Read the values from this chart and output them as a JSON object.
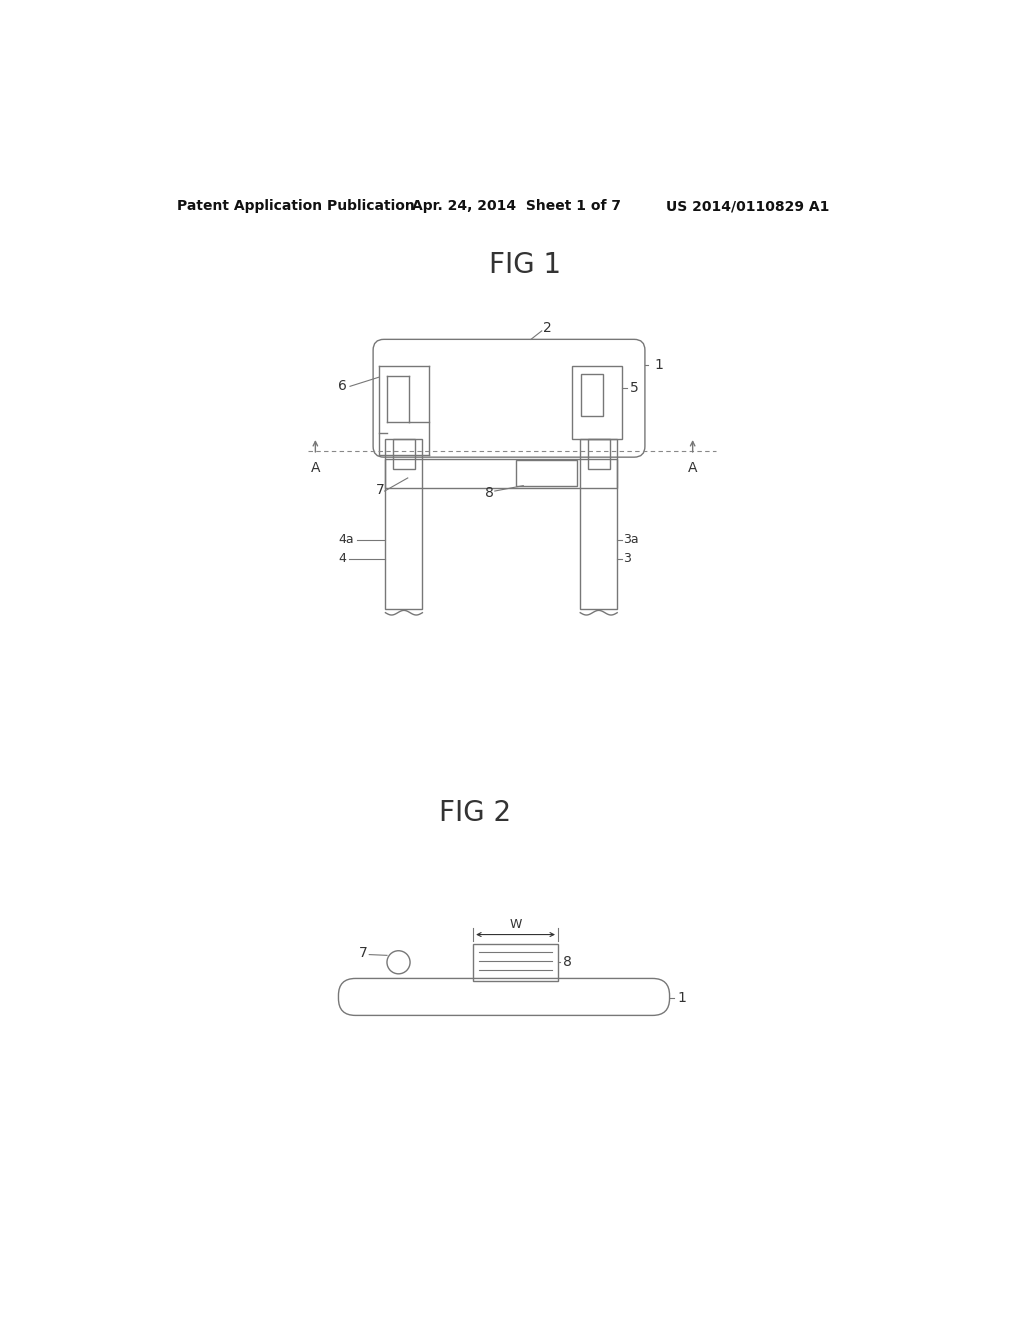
{
  "header_left": "Patent Application Publication",
  "header_mid": "Apr. 24, 2014  Sheet 1 of 7",
  "header_right": "US 2014/0110829 A1",
  "fig1_title": "FIG 1",
  "fig2_title": "FIG 2",
  "bg_color": "#ffffff",
  "line_color": "#777777",
  "text_color": "#333333",
  "header_color": "#111111"
}
